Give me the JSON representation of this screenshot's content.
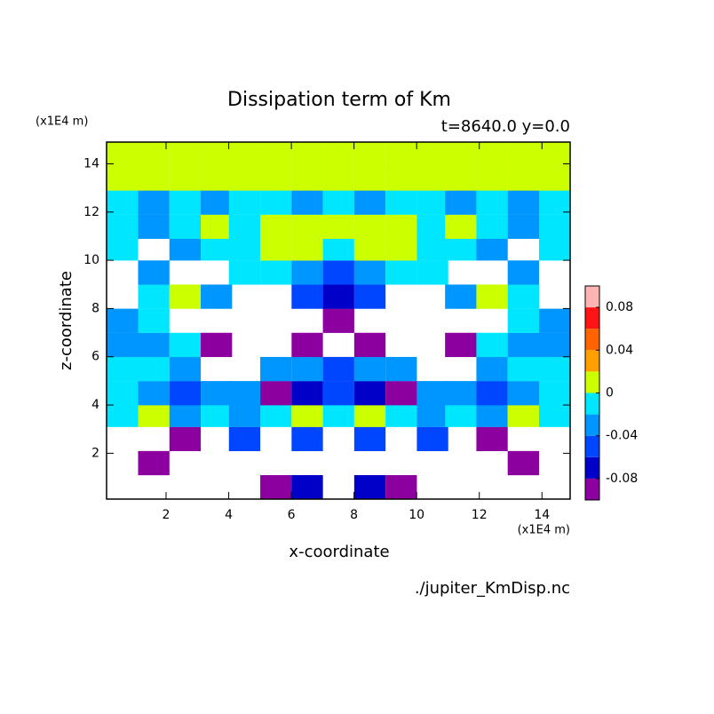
{
  "chart_data": {
    "type": "heatmap",
    "title": "Dissipation term of Km",
    "subtitle": "t=8640.0 y=0.0",
    "x_label": "x-coordinate",
    "y_label": "z-coordinate",
    "x_unit": "(x1E4 m)",
    "y_unit": "(x1E4 m)",
    "file": "./jupiter_KmDisp.nc",
    "xlim": [
      0.1,
      14.9
    ],
    "ylim": [
      0.1,
      14.9
    ],
    "xticks": [
      2,
      4,
      6,
      8,
      10,
      12,
      14
    ],
    "yticks": [
      2,
      4,
      6,
      8,
      10,
      12,
      14
    ],
    "x": [
      0.6,
      1.6,
      2.6,
      3.6,
      4.5,
      5.5,
      6.5,
      7.5,
      8.5,
      9.5,
      10.5,
      11.4,
      12.4,
      13.4,
      14.4
    ],
    "z": [
      0.6,
      1.6,
      2.6,
      3.6,
      4.5,
      5.5,
      6.5,
      7.5,
      8.5,
      9.5,
      10.5,
      11.4,
      12.4,
      13.4,
      14.4
    ],
    "values": [
      [
        null,
        null,
        null,
        null,
        null,
        -0.09,
        -0.07,
        null,
        -0.07,
        -0.09,
        null,
        null,
        null,
        null,
        null
      ],
      [
        null,
        -0.09,
        null,
        null,
        null,
        null,
        null,
        null,
        null,
        null,
        null,
        null,
        null,
        -0.09,
        null
      ],
      [
        null,
        null,
        -0.09,
        null,
        -0.05,
        null,
        -0.05,
        null,
        -0.05,
        null,
        -0.05,
        null,
        -0.09,
        null,
        null
      ],
      [
        -0.01,
        0.01,
        -0.03,
        -0.01,
        -0.03,
        -0.01,
        0.01,
        -0.01,
        0.01,
        -0.01,
        -0.03,
        -0.01,
        -0.03,
        0.01,
        -0.01
      ],
      [
        -0.01,
        -0.03,
        -0.05,
        -0.03,
        -0.03,
        -0.09,
        -0.07,
        -0.05,
        -0.07,
        -0.09,
        -0.03,
        -0.03,
        -0.05,
        -0.03,
        -0.01
      ],
      [
        -0.01,
        -0.01,
        -0.03,
        null,
        null,
        -0.03,
        -0.03,
        -0.05,
        -0.03,
        -0.03,
        null,
        null,
        -0.03,
        -0.01,
        -0.01
      ],
      [
        -0.03,
        -0.03,
        -0.01,
        -0.09,
        null,
        null,
        -0.09,
        null,
        -0.09,
        null,
        null,
        -0.09,
        -0.01,
        -0.03,
        -0.03
      ],
      [
        -0.03,
        -0.01,
        null,
        null,
        null,
        null,
        null,
        -0.09,
        null,
        null,
        null,
        null,
        null,
        -0.01,
        -0.03
      ],
      [
        null,
        -0.01,
        0.01,
        -0.03,
        null,
        null,
        -0.05,
        -0.07,
        -0.05,
        null,
        null,
        -0.03,
        0.01,
        -0.01,
        null
      ],
      [
        null,
        -0.03,
        null,
        null,
        -0.01,
        -0.01,
        -0.03,
        -0.05,
        -0.03,
        -0.01,
        -0.01,
        null,
        null,
        -0.03,
        null
      ],
      [
        -0.01,
        null,
        -0.03,
        -0.01,
        -0.01,
        0.01,
        0.01,
        -0.01,
        0.01,
        0.01,
        -0.01,
        -0.01,
        -0.03,
        null,
        -0.01
      ],
      [
        -0.01,
        -0.03,
        -0.01,
        0.01,
        -0.01,
        0.01,
        0.01,
        0.01,
        0.01,
        0.01,
        -0.01,
        0.01,
        -0.01,
        -0.03,
        -0.01
      ],
      [
        -0.01,
        -0.03,
        -0.01,
        -0.03,
        -0.01,
        -0.01,
        -0.03,
        -0.01,
        -0.03,
        -0.01,
        -0.01,
        -0.03,
        -0.01,
        -0.03,
        -0.01
      ],
      [
        0.01,
        0.01,
        0.01,
        0.01,
        0.01,
        0.01,
        0.01,
        0.01,
        0.01,
        0.01,
        0.01,
        0.01,
        0.01,
        0.01,
        0.01
      ],
      [
        0.01,
        0.01,
        0.01,
        0.01,
        0.01,
        0.01,
        0.01,
        0.01,
        0.01,
        0.01,
        0.01,
        0.01,
        0.01,
        0.01,
        0.01
      ]
    ],
    "levels": [
      -0.1,
      -0.08,
      -0.06,
      -0.04,
      -0.02,
      0,
      0.02,
      0.04,
      0.06,
      0.08,
      0.1
    ],
    "colors": [
      "#8c00a0",
      "#0000c8",
      "#0046ff",
      "#0096ff",
      "#00e6ff",
      "#ccff00",
      "#ffa000",
      "#ff6400",
      "#ff1414",
      "#ffb4b4"
    ],
    "colorbar_ticks": [
      -0.08,
      -0.04,
      0,
      0.04,
      0.08
    ]
  }
}
